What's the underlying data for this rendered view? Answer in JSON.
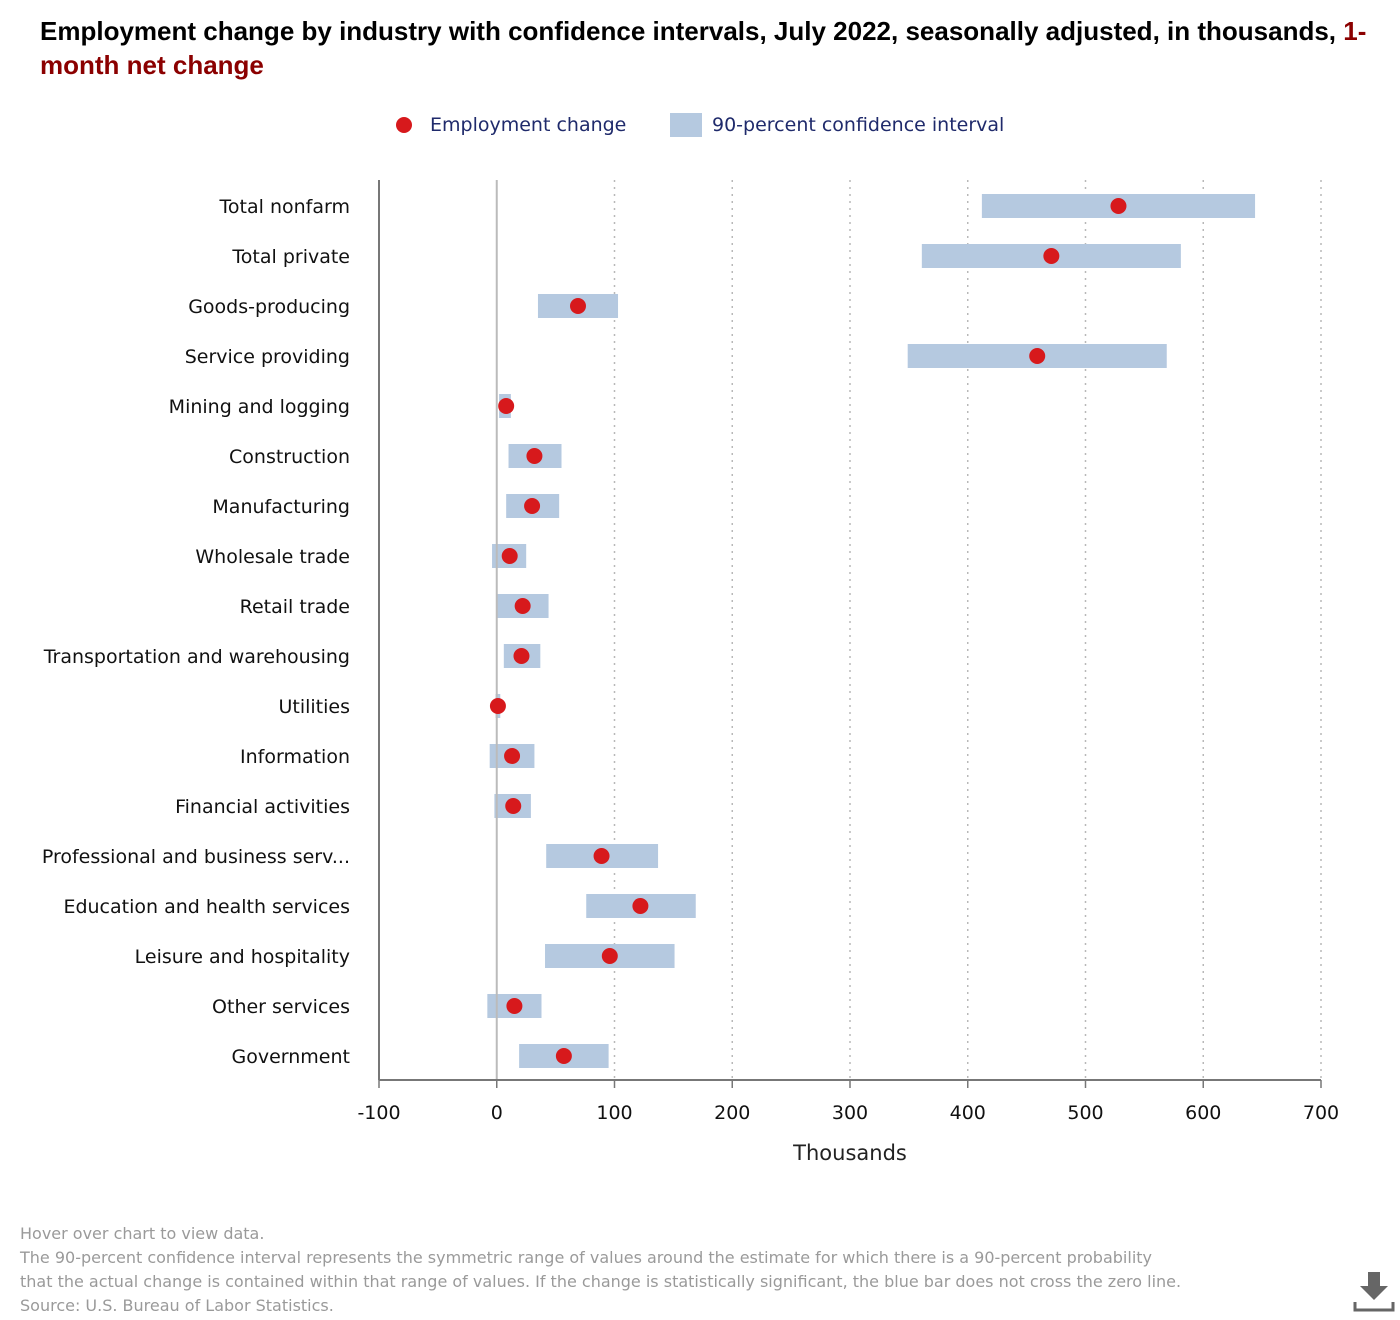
{
  "header": {
    "title_main": "Employment change by industry with confidence intervals, July 2022, seasonally adjusted, in thousands, ",
    "title_highlight": "1-month net change"
  },
  "legend": {
    "point_label": "Employment change",
    "interval_label": "90-percent confidence interval"
  },
  "colors": {
    "point": "#d7191c",
    "interval": "#b5c9e0",
    "highlight": "#8b0000",
    "legend_text": "#1f2a6b"
  },
  "chart_data": {
    "type": "scatter",
    "title": "Employment change by industry with confidence intervals, July 2022, seasonally adjusted, in thousands, 1-month net change",
    "xlabel": "Thousands",
    "ylabel": "",
    "xlim": [
      -100,
      700
    ],
    "xticks": [
      -100,
      0,
      100,
      200,
      300,
      400,
      500,
      600,
      700
    ],
    "tick_labels": [
      "-100",
      "0",
      "100",
      "200",
      "300",
      "400",
      "500",
      "600",
      "700"
    ],
    "grid": "vertical dotted",
    "legend_position": "top-center",
    "categories": [
      "Total nonfarm",
      "Total private",
      "Goods-producing",
      "Service providing",
      "Mining and logging",
      "Construction",
      "Manufacturing",
      "Wholesale trade",
      "Retail trade",
      "Transportation and warehousing",
      "Utilities",
      "Information",
      "Financial activities",
      "Professional and business serv...",
      "Education and health services",
      "Leisure and hospitality",
      "Other services",
      "Government"
    ],
    "series": [
      {
        "name": "Employment change",
        "values": [
          528,
          471,
          69,
          459,
          8,
          32,
          30,
          11,
          22,
          21,
          1,
          13,
          14,
          89,
          122,
          96,
          15,
          57
        ]
      },
      {
        "name": "90-percent confidence interval",
        "ranges": [
          [
            412,
            644
          ],
          [
            361,
            581
          ],
          [
            35,
            103
          ],
          [
            349,
            569
          ],
          [
            2,
            12
          ],
          [
            10,
            55
          ],
          [
            8,
            53
          ],
          [
            -4,
            25
          ],
          [
            0,
            44
          ],
          [
            6,
            37
          ],
          [
            -1,
            3
          ],
          [
            -6,
            32
          ],
          [
            -2,
            29
          ],
          [
            42,
            137
          ],
          [
            76,
            169
          ],
          [
            41,
            151
          ],
          [
            -8,
            38
          ],
          [
            19,
            95
          ]
        ]
      }
    ]
  },
  "footer": {
    "hover_note": "Hover over chart to view data.",
    "note_line1": "The 90-percent confidence interval represents the symmetric range of values around the estimate for which there is a 90-percent probability",
    "note_line2": "that the actual change is contained within that range of values. If the change is statistically significant, the blue bar does not cross the zero line.",
    "source": "Source: U.S. Bureau of Labor Statistics."
  }
}
